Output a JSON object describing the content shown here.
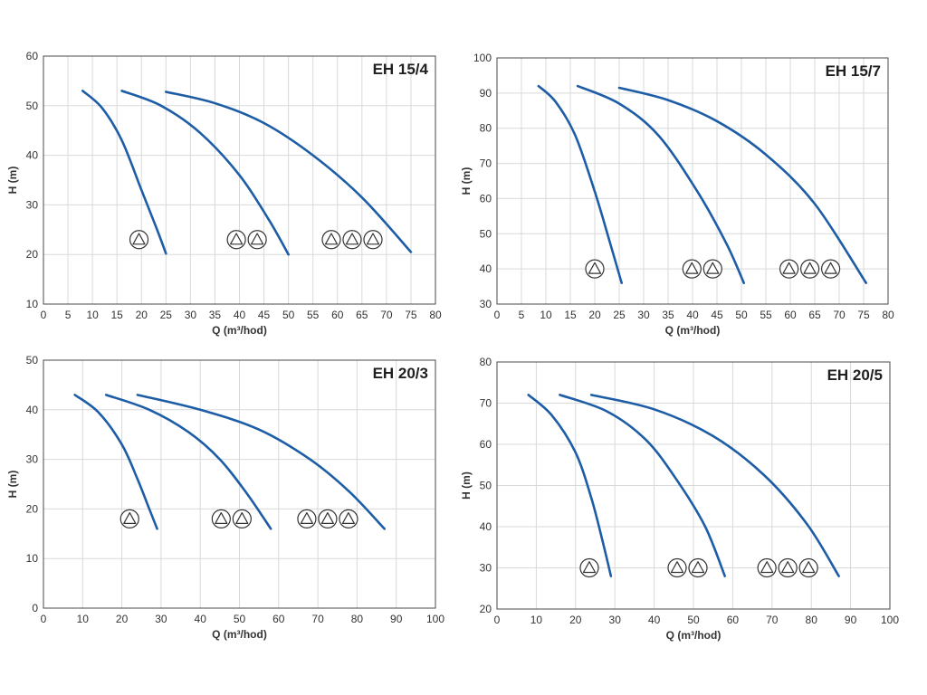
{
  "chart_data": [
    {
      "type": "line",
      "title": "EH 15/4",
      "xlabel": "Q (m³/hod)",
      "ylabel": "H (m)",
      "xlim": [
        0,
        80
      ],
      "ylim": [
        10,
        60
      ],
      "xticks": [
        0,
        5,
        10,
        15,
        20,
        25,
        30,
        35,
        40,
        45,
        50,
        55,
        60,
        65,
        70,
        75,
        80
      ],
      "yticks": [
        10,
        20,
        30,
        40,
        50,
        60
      ],
      "grid": true,
      "series": [
        {
          "x": [
            8,
            12,
            16,
            20,
            23,
            25
          ],
          "y": [
            53,
            49.5,
            43,
            33,
            25.5,
            20.2
          ]
        },
        {
          "x": [
            16,
            24,
            32,
            40,
            46,
            50
          ],
          "y": [
            53,
            50,
            44.5,
            36,
            27,
            20
          ]
        },
        {
          "x": [
            25,
            35,
            45,
            55,
            65,
            75
          ],
          "y": [
            52.8,
            50.5,
            46.5,
            40,
            31.5,
            20.5
          ]
        }
      ],
      "markers": [
        {
          "x": 19.5,
          "y": 23,
          "count": 1
        },
        {
          "x": 41.5,
          "y": 23,
          "count": 2
        },
        {
          "x": 63,
          "y": 23,
          "count": 3
        }
      ]
    },
    {
      "type": "line",
      "title": "EH 15/7",
      "xlabel": "Q (m³/hod)",
      "ylabel": "H (m)",
      "xlim": [
        0,
        80
      ],
      "ylim": [
        30,
        100
      ],
      "xticks": [
        0,
        5,
        10,
        15,
        20,
        25,
        30,
        35,
        40,
        45,
        50,
        55,
        60,
        65,
        70,
        75,
        80
      ],
      "yticks": [
        30,
        40,
        50,
        60,
        70,
        80,
        90,
        100
      ],
      "grid": true,
      "series": [
        {
          "x": [
            8.5,
            12,
            16,
            20,
            23,
            25.5
          ],
          "y": [
            92,
            87.5,
            78,
            62,
            48,
            36
          ]
        },
        {
          "x": [
            16.5,
            25,
            33,
            41,
            47,
            50.5
          ],
          "y": [
            92,
            87,
            78,
            62,
            47,
            36
          ]
        },
        {
          "x": [
            25,
            35,
            45,
            55,
            65,
            75.5
          ],
          "y": [
            91.5,
            88,
            82,
            72.5,
            58.5,
            36
          ]
        }
      ],
      "markers": [
        {
          "x": 20,
          "y": 40,
          "count": 1
        },
        {
          "x": 42,
          "y": 40,
          "count": 2
        },
        {
          "x": 64,
          "y": 40,
          "count": 3
        }
      ]
    },
    {
      "type": "line",
      "title": "EH 20/3",
      "xlabel": "Q (m³/hod)",
      "ylabel": "H (m)",
      "xlim": [
        0,
        100
      ],
      "ylim": [
        0,
        50
      ],
      "xticks": [
        0,
        10,
        20,
        30,
        40,
        50,
        60,
        70,
        80,
        90,
        100
      ],
      "yticks": [
        0,
        10,
        20,
        30,
        40,
        50
      ],
      "grid": true,
      "series": [
        {
          "x": [
            8,
            14,
            20,
            24,
            27,
            29
          ],
          "y": [
            43,
            39.5,
            33,
            26,
            20,
            16
          ]
        },
        {
          "x": [
            16,
            27,
            37,
            45,
            52,
            58
          ],
          "y": [
            43,
            40,
            35.5,
            30,
            23,
            16
          ]
        },
        {
          "x": [
            24,
            40,
            55,
            68,
            78,
            87
          ],
          "y": [
            43,
            40,
            36,
            30,
            23.5,
            16
          ]
        }
      ],
      "markers": [
        {
          "x": 22,
          "y": 18,
          "count": 1
        },
        {
          "x": 48,
          "y": 18,
          "count": 2
        },
        {
          "x": 72.5,
          "y": 18,
          "count": 3
        }
      ]
    },
    {
      "type": "line",
      "title": "EH 20/5",
      "xlabel": "Q (m³/hod)",
      "ylabel": "H (m)",
      "xlim": [
        0,
        100
      ],
      "ylim": [
        20,
        80
      ],
      "xticks": [
        0,
        10,
        20,
        30,
        40,
        50,
        60,
        70,
        80,
        90,
        100
      ],
      "yticks": [
        20,
        30,
        40,
        50,
        60,
        70,
        80
      ],
      "grid": true,
      "series": [
        {
          "x": [
            8,
            14,
            20,
            24,
            27,
            29
          ],
          "y": [
            72,
            67,
            58,
            47,
            36,
            28
          ]
        },
        {
          "x": [
            16,
            28,
            38,
            46,
            53,
            58
          ],
          "y": [
            72,
            68,
            61,
            51,
            40,
            28
          ]
        },
        {
          "x": [
            24,
            40,
            55,
            68,
            79,
            87
          ],
          "y": [
            72,
            68.5,
            62,
            52.5,
            40.5,
            28
          ]
        }
      ],
      "markers": [
        {
          "x": 23.5,
          "y": 30,
          "count": 1
        },
        {
          "x": 48.5,
          "y": 30,
          "count": 2
        },
        {
          "x": 74,
          "y": 30,
          "count": 3
        }
      ]
    }
  ]
}
